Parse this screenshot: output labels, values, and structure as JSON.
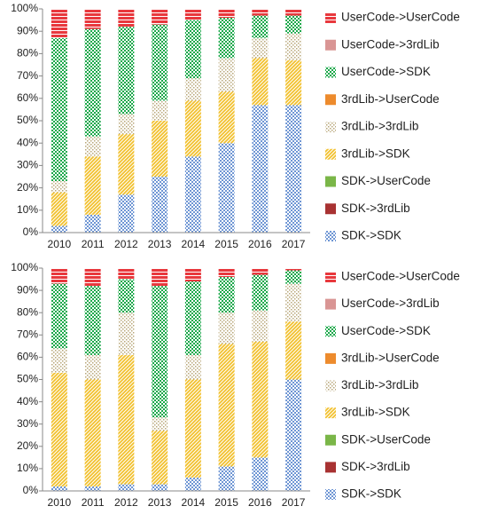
{
  "chart_data": [
    {
      "type": "stacked_bar",
      "categories": [
        "2010",
        "2011",
        "2012",
        "2013",
        "2014",
        "2015",
        "2016",
        "2017"
      ],
      "ylim": [
        0,
        100
      ],
      "yticks": [
        {
          "value": 0,
          "label": "0%"
        },
        {
          "value": 10,
          "label": "10%"
        },
        {
          "value": 20,
          "label": "20%"
        },
        {
          "value": 30,
          "label": "30%"
        },
        {
          "value": 40,
          "label": "40%"
        },
        {
          "value": 50,
          "label": "50%"
        },
        {
          "value": 60,
          "label": "60%"
        },
        {
          "value": 70,
          "label": "70%"
        },
        {
          "value": 80,
          "label": "80%"
        },
        {
          "value": 90,
          "label": "90%"
        },
        {
          "value": 100,
          "label": "100%"
        }
      ],
      "series": [
        {
          "name": "SDK->SDK",
          "color": "#6f96d4",
          "pattern": "checker",
          "values": [
            3,
            8,
            17,
            25,
            34,
            40,
            57,
            57
          ]
        },
        {
          "name": "SDK->3rdLib",
          "color": "#a83232",
          "pattern": "solid",
          "values": [
            0,
            0,
            0,
            0,
            0,
            0,
            0,
            0
          ]
        },
        {
          "name": "SDK->UserCode",
          "color": "#7ab648",
          "pattern": "solid",
          "values": [
            0,
            0,
            0,
            0,
            0,
            0,
            0,
            0
          ]
        },
        {
          "name": "3rdLib->SDK",
          "color": "#f2c12e",
          "pattern": "diagonal",
          "values": [
            15,
            26,
            27,
            25,
            25,
            23,
            21,
            20
          ]
        },
        {
          "name": "3rdLib->3rdLib",
          "color": "#b8a779",
          "pattern": "dots",
          "values": [
            5,
            9,
            9,
            9,
            10,
            15,
            9,
            12
          ]
        },
        {
          "name": "3rdLib->UserCode",
          "color": "#ed8b2d",
          "pattern": "solid",
          "values": [
            0,
            0,
            0,
            0,
            0,
            0,
            0,
            0
          ]
        },
        {
          "name": "UserCode->SDK",
          "color": "#1aa84a",
          "pattern": "checker",
          "values": [
            64,
            48,
            39,
            34,
            26,
            18,
            10,
            8
          ]
        },
        {
          "name": "UserCode->3rdLib",
          "color": "#d99594",
          "pattern": "solid",
          "values": [
            0,
            0,
            0,
            0,
            0,
            0,
            0,
            0
          ]
        },
        {
          "name": "UserCode->UserCode",
          "color": "#e8383d",
          "pattern": "hlines",
          "values": [
            13,
            9,
            8,
            7,
            5,
            4,
            3,
            3
          ]
        }
      ]
    },
    {
      "type": "stacked_bar",
      "categories": [
        "2010",
        "2011",
        "2012",
        "2013",
        "2014",
        "2015",
        "2016",
        "2017"
      ],
      "ylim": [
        0,
        100
      ],
      "yticks": [
        {
          "value": 0,
          "label": "0%"
        },
        {
          "value": 10,
          "label": "10%"
        },
        {
          "value": 20,
          "label": "20%"
        },
        {
          "value": 30,
          "label": "30%"
        },
        {
          "value": 40,
          "label": "40%"
        },
        {
          "value": 50,
          "label": "50%"
        },
        {
          "value": 60,
          "label": "60%"
        },
        {
          "value": 70,
          "label": "70%"
        },
        {
          "value": 80,
          "label": "80%"
        },
        {
          "value": 90,
          "label": "90%"
        },
        {
          "value": 100,
          "label": "100%"
        }
      ],
      "series": [
        {
          "name": "SDK->SDK",
          "color": "#6f96d4",
          "pattern": "checker",
          "values": [
            2,
            2,
            3,
            3,
            6,
            11,
            15,
            50
          ]
        },
        {
          "name": "SDK->3rdLib",
          "color": "#a83232",
          "pattern": "solid",
          "values": [
            0,
            0,
            0,
            0,
            0,
            0,
            0,
            0
          ]
        },
        {
          "name": "SDK->UserCode",
          "color": "#7ab648",
          "pattern": "solid",
          "values": [
            0,
            0,
            0,
            0,
            0,
            0,
            0,
            0
          ]
        },
        {
          "name": "3rdLib->SDK",
          "color": "#f2c12e",
          "pattern": "diagonal",
          "values": [
            51,
            48,
            58,
            24,
            44,
            55,
            52,
            26
          ]
        },
        {
          "name": "3rdLib->3rdLib",
          "color": "#b8a779",
          "pattern": "dots",
          "values": [
            11,
            11,
            19,
            6,
            11,
            14,
            14,
            17
          ]
        },
        {
          "name": "3rdLib->UserCode",
          "color": "#ed8b2d",
          "pattern": "solid",
          "values": [
            0,
            0,
            0,
            0,
            0,
            0,
            0,
            0
          ]
        },
        {
          "name": "UserCode->SDK",
          "color": "#1aa84a",
          "pattern": "checker",
          "values": [
            29,
            31,
            15,
            59,
            33,
            16,
            16,
            6
          ]
        },
        {
          "name": "UserCode->3rdLib",
          "color": "#d99594",
          "pattern": "solid",
          "values": [
            0,
            0,
            0,
            0,
            0,
            0,
            0,
            0
          ]
        },
        {
          "name": "UserCode->UserCode",
          "color": "#e8383d",
          "pattern": "hlines",
          "values": [
            7,
            8,
            5,
            8,
            6,
            4,
            3,
            1
          ]
        }
      ]
    }
  ]
}
